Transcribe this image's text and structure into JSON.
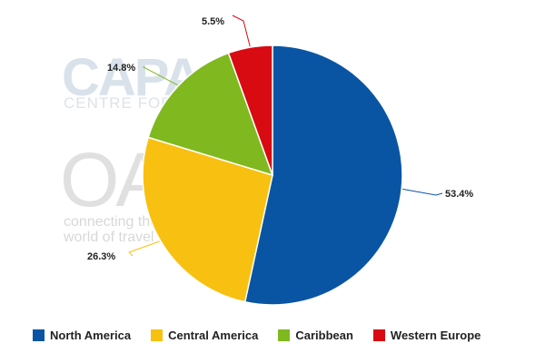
{
  "watermark": {
    "capa_logo": "CAPA",
    "capa_tagline": "CENTRE FOR AVIATION",
    "oag_logo": "OAG",
    "oag_tagline_line1": "connecting the",
    "oag_tagline_line2": "world of travel"
  },
  "chart_data": {
    "type": "pie",
    "categories": [
      "North America",
      "Central America",
      "Caribbean",
      "Western Europe"
    ],
    "values": [
      53.4,
      26.3,
      14.8,
      5.5
    ],
    "labels": [
      "53.4%",
      "26.3%",
      "14.8%",
      "5.5%"
    ],
    "colors": [
      "#0a55a3",
      "#f8c010",
      "#7fb91f",
      "#d80a12"
    ],
    "legend_position": "bottom",
    "start_angle": "12 o'clock",
    "direction": "clockwise"
  }
}
